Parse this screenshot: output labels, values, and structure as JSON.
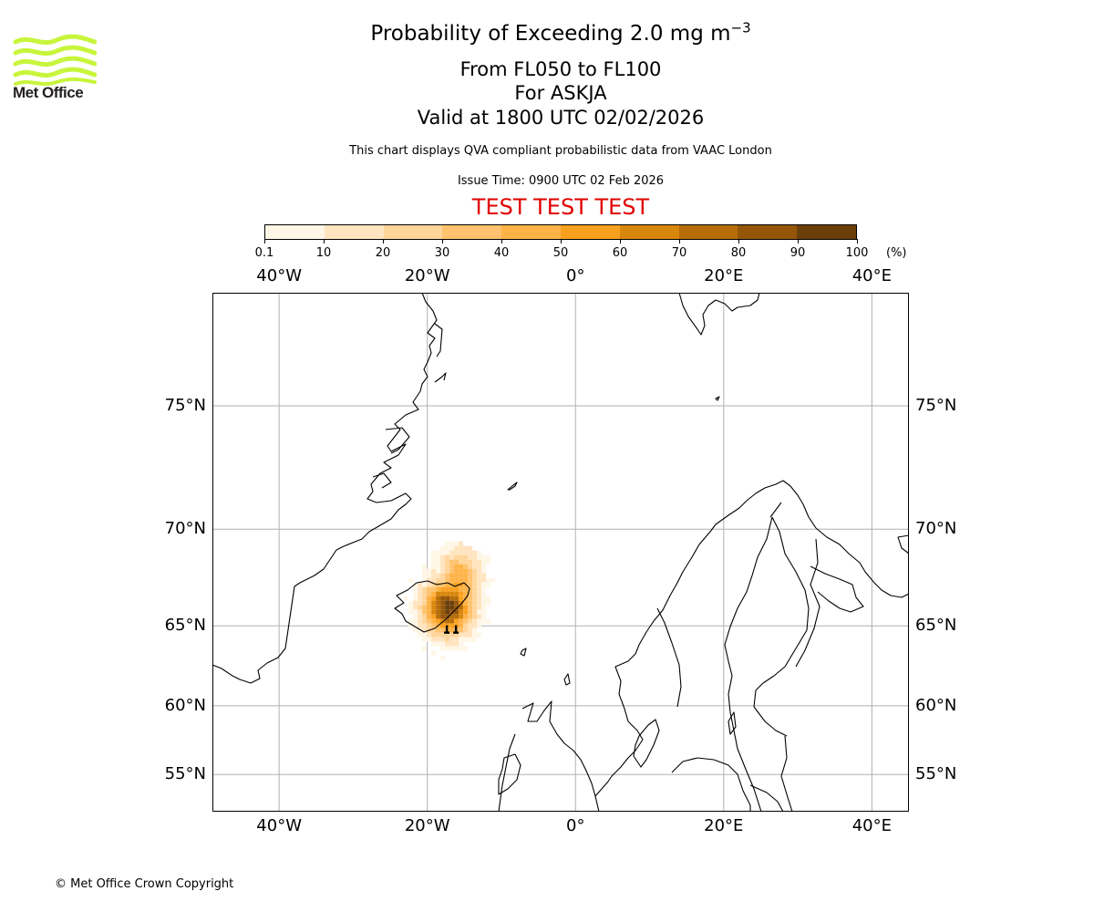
{
  "header": {
    "title_main": "Probability of Exceeding 2.0 mg m",
    "title_exponent": "−3",
    "line_level": "From FL050 to FL100",
    "line_volcano": "For ASKJA",
    "line_valid": "Valid at 1800 UTC 02/02/2026",
    "disclaimer": "This chart displays QVA compliant probabilistic data from VAAC London",
    "issue_time": "Issue Time: 0900 UTC 02 Feb 2026",
    "test_banner": "TEST TEST TEST"
  },
  "logo": {
    "text": "Met Office",
    "color": "#c8f53c"
  },
  "footer": {
    "copyright": "© Met Office Crown Copyright"
  },
  "colorbar": {
    "unit": "(%)",
    "ticks": [
      "0.1",
      "10",
      "20",
      "30",
      "40",
      "50",
      "60",
      "70",
      "80",
      "90",
      "100"
    ],
    "colors": [
      "#fff6e6",
      "#ffe4bf",
      "#ffd59a",
      "#ffc26e",
      "#ffb347",
      "#f9a11f",
      "#d9870c",
      "#b76d08",
      "#955608",
      "#6b3f0a"
    ]
  },
  "map": {
    "lon_labels": [
      "40°W",
      "20°W",
      "0°",
      "20°E",
      "40°E"
    ],
    "lat_labels": [
      "75°N",
      "70°N",
      "65°N",
      "60°N",
      "55°N"
    ],
    "lon_range": [
      -49,
      45
    ],
    "lat_range": [
      52,
      78.5
    ],
    "volcano": {
      "name": "ASKJA",
      "lon": -16.75,
      "lat": 65.03
    },
    "plume_peak_probability": 100
  }
}
